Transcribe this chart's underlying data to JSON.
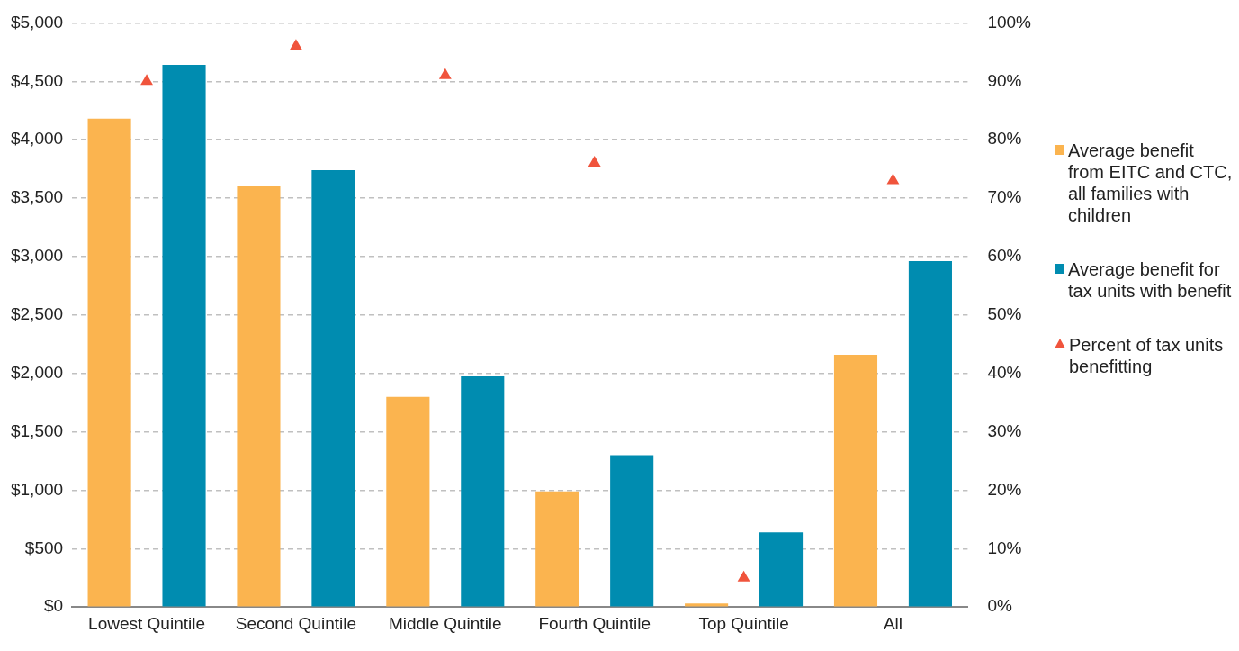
{
  "chart_data": {
    "type": "bar",
    "categories": [
      "Lowest Quintile",
      "Second Quintile",
      "Middle Quintile",
      "Fourth Quintile",
      "Top Quintile",
      "All"
    ],
    "series": [
      {
        "name": "Average benefit from EITC and CTC, all families with children",
        "color": "#fbb44f",
        "values": [
          4180,
          3600,
          1800,
          990,
          30,
          2160
        ]
      },
      {
        "name": "Average benefit for tax units with benefit",
        "color": "#008cb0",
        "values": [
          4640,
          3740,
          1975,
          1300,
          640,
          2960
        ]
      },
      {
        "name": "Percent of tax units benefitting",
        "type": "scatter",
        "axis": "y2",
        "color": "#f0543c",
        "x": [
          "Lowest Quintile",
          "Second Quintile",
          "Middle Quintile",
          "Fourth Quintile",
          "Top Quintile",
          "All"
        ],
        "values": [
          90,
          96,
          91,
          76,
          5,
          73
        ]
      }
    ],
    "ylim": [
      0,
      5000
    ],
    "yticks": [
      {
        "value": 0,
        "label": "$0"
      },
      {
        "value": 500,
        "label": "$500"
      },
      {
        "value": 1000,
        "label": "$1,000"
      },
      {
        "value": 1500,
        "label": "$1,500"
      },
      {
        "value": 2000,
        "label": "$2,000"
      },
      {
        "value": 2500,
        "label": "$2,500"
      },
      {
        "value": 3000,
        "label": "$3,000"
      },
      {
        "value": 3500,
        "label": "$3,500"
      },
      {
        "value": 4000,
        "label": "$4,000"
      },
      {
        "value": 4500,
        "label": "$4,500"
      },
      {
        "value": 5000,
        "label": "$5,000"
      }
    ],
    "y2lim": [
      0,
      100
    ],
    "y2ticks": [
      {
        "value": 0,
        "label": "0%"
      },
      {
        "value": 10,
        "label": "10%"
      },
      {
        "value": 20,
        "label": "20%"
      },
      {
        "value": 30,
        "label": "30%"
      },
      {
        "value": 40,
        "label": "40%"
      },
      {
        "value": 50,
        "label": "50%"
      },
      {
        "value": 60,
        "label": "60%"
      },
      {
        "value": 70,
        "label": "70%"
      },
      {
        "value": 80,
        "label": "80%"
      },
      {
        "value": 90,
        "label": "90%"
      },
      {
        "value": 100,
        "label": "100%"
      }
    ],
    "grid": "y",
    "legend": "right",
    "marker": "triangle"
  }
}
